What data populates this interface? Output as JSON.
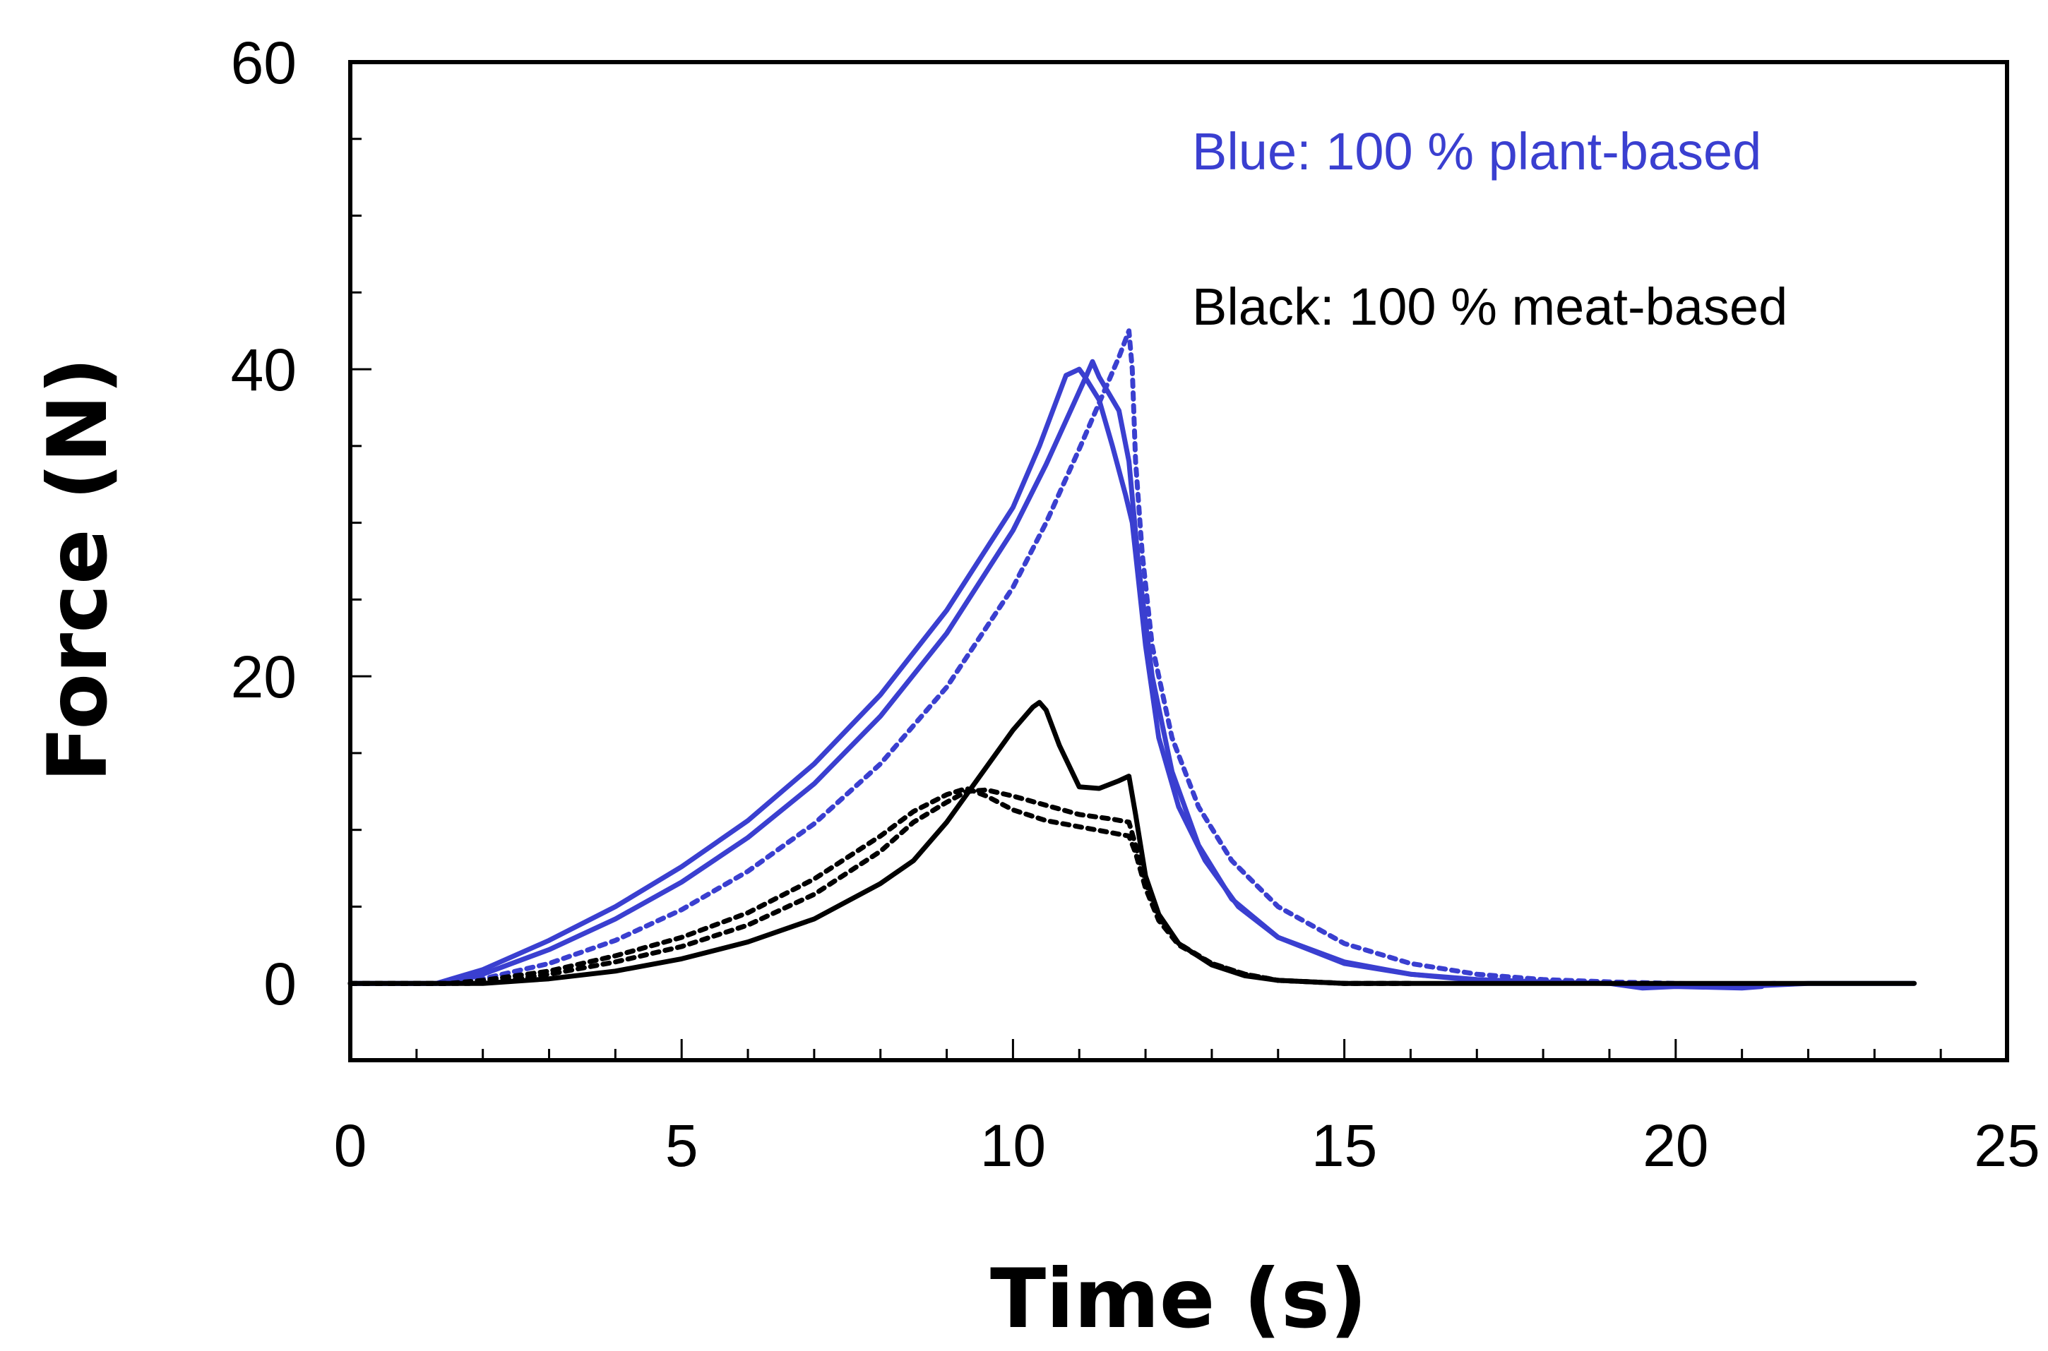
{
  "chart_data": {
    "type": "line",
    "xlabel": "Time (s)",
    "ylabel": "Force (N)",
    "xlim": [
      0,
      25
    ],
    "ylim": [
      -5,
      60
    ],
    "xticks": [
      0,
      5,
      10,
      15,
      20,
      25
    ],
    "yticks": [
      0,
      20,
      40,
      60
    ],
    "grid": false,
    "annotations": [
      {
        "text": "Blue: 100 % plant-based",
        "color": "#3a3fd0"
      },
      {
        "text": "Black: 100 % meat-based",
        "color": "#000000"
      }
    ],
    "series": [
      {
        "name": "plant-based run 1",
        "color": "#3a3fd0",
        "dash": "solid",
        "points": [
          [
            0,
            0
          ],
          [
            1.5,
            0
          ],
          [
            2,
            0.6
          ],
          [
            3,
            2.2
          ],
          [
            4,
            4.2
          ],
          [
            5,
            6.6
          ],
          [
            6,
            9.5
          ],
          [
            7,
            13.0
          ],
          [
            8,
            17.4
          ],
          [
            9,
            22.8
          ],
          [
            10,
            29.5
          ],
          [
            10.5,
            33.8
          ],
          [
            10.9,
            37.6
          ],
          [
            11.1,
            39.5
          ],
          [
            11.2,
            40.5
          ],
          [
            11.3,
            39.5
          ],
          [
            11.6,
            37.3
          ],
          [
            11.75,
            34.0
          ],
          [
            11.9,
            27.0
          ],
          [
            12.1,
            20.0
          ],
          [
            12.4,
            13.8
          ],
          [
            12.8,
            9.0
          ],
          [
            13.3,
            5.5
          ],
          [
            14,
            3.0
          ],
          [
            15,
            1.4
          ],
          [
            16,
            0.6
          ],
          [
            17,
            0.2
          ],
          [
            18,
            0.05
          ],
          [
            19,
            0
          ],
          [
            20,
            -0.1
          ],
          [
            21,
            -0.2
          ],
          [
            22,
            0
          ],
          [
            23.6,
            0
          ]
        ]
      },
      {
        "name": "plant-based run 2",
        "color": "#3a3fd0",
        "dash": "solid",
        "points": [
          [
            0,
            0
          ],
          [
            1.3,
            0
          ],
          [
            2,
            0.9
          ],
          [
            3,
            2.8
          ],
          [
            4,
            5.0
          ],
          [
            5,
            7.6
          ],
          [
            6,
            10.6
          ],
          [
            7,
            14.3
          ],
          [
            8,
            18.8
          ],
          [
            9,
            24.3
          ],
          [
            10,
            31.0
          ],
          [
            10.4,
            35.0
          ],
          [
            10.8,
            39.6
          ],
          [
            11.0,
            40.0
          ],
          [
            11.1,
            39.4
          ],
          [
            11.3,
            38.0
          ],
          [
            11.5,
            35.0
          ],
          [
            11.7,
            31.8
          ],
          [
            11.8,
            30.0
          ],
          [
            12.0,
            22.0
          ],
          [
            12.2,
            16.0
          ],
          [
            12.5,
            11.5
          ],
          [
            12.9,
            8.0
          ],
          [
            13.4,
            5.0
          ],
          [
            14,
            3.0
          ],
          [
            15,
            1.3
          ],
          [
            16,
            0.6
          ],
          [
            17,
            0.25
          ],
          [
            18,
            0.1
          ],
          [
            19,
            0
          ],
          [
            19.5,
            -0.3
          ],
          [
            20,
            -0.2
          ],
          [
            21,
            -0.3
          ],
          [
            21.3,
            -0.2
          ]
        ]
      },
      {
        "name": "plant-based run 3",
        "color": "#3a3fd0",
        "dash": "dotted",
        "points": [
          [
            0,
            0
          ],
          [
            1.5,
            0
          ],
          [
            2,
            0.3
          ],
          [
            3,
            1.3
          ],
          [
            4,
            2.8
          ],
          [
            5,
            4.8
          ],
          [
            6,
            7.3
          ],
          [
            7,
            10.4
          ],
          [
            8,
            14.3
          ],
          [
            9,
            19.3
          ],
          [
            10,
            25.8
          ],
          [
            10.5,
            30.0
          ],
          [
            11,
            34.8
          ],
          [
            11.4,
            38.8
          ],
          [
            11.6,
            40.8
          ],
          [
            11.75,
            42.5
          ],
          [
            11.8,
            40.0
          ],
          [
            11.85,
            34.0
          ],
          [
            11.95,
            28.0
          ],
          [
            12.1,
            22.0
          ],
          [
            12.4,
            16.0
          ],
          [
            12.8,
            11.5
          ],
          [
            13.3,
            8.0
          ],
          [
            14,
            5.0
          ],
          [
            15,
            2.6
          ],
          [
            16,
            1.3
          ],
          [
            17,
            0.6
          ],
          [
            18,
            0.25
          ],
          [
            19,
            0.1
          ],
          [
            20,
            0
          ],
          [
            21,
            -0.1
          ],
          [
            21.5,
            0
          ]
        ]
      },
      {
        "name": "meat-based run 1",
        "color": "#000000",
        "dash": "solid",
        "points": [
          [
            0,
            0
          ],
          [
            2,
            0
          ],
          [
            3,
            0.3
          ],
          [
            4,
            0.8
          ],
          [
            5,
            1.6
          ],
          [
            6,
            2.7
          ],
          [
            7,
            4.2
          ],
          [
            8,
            6.5
          ],
          [
            8.5,
            8.0
          ],
          [
            9,
            10.5
          ],
          [
            9.5,
            13.5
          ],
          [
            10,
            16.5
          ],
          [
            10.3,
            18.0
          ],
          [
            10.4,
            18.3
          ],
          [
            10.5,
            17.8
          ],
          [
            10.7,
            15.5
          ],
          [
            11,
            12.8
          ],
          [
            11.3,
            12.7
          ],
          [
            11.6,
            13.2
          ],
          [
            11.75,
            13.5
          ],
          [
            11.85,
            11.0
          ],
          [
            12,
            7.0
          ],
          [
            12.2,
            4.5
          ],
          [
            12.5,
            2.6
          ],
          [
            13,
            1.2
          ],
          [
            13.5,
            0.5
          ],
          [
            14,
            0.2
          ],
          [
            15,
            0
          ],
          [
            23.6,
            0
          ]
        ]
      },
      {
        "name": "meat-based run 2",
        "color": "#000000",
        "dash": "dotted",
        "points": [
          [
            0,
            0
          ],
          [
            1.8,
            0
          ],
          [
            2.5,
            0.3
          ],
          [
            3,
            0.6
          ],
          [
            4,
            1.4
          ],
          [
            5,
            2.4
          ],
          [
            6,
            3.8
          ],
          [
            7,
            5.8
          ],
          [
            8,
            8.6
          ],
          [
            8.5,
            10.5
          ],
          [
            9,
            11.8
          ],
          [
            9.3,
            12.5
          ],
          [
            9.6,
            12.6
          ],
          [
            10,
            12.2
          ],
          [
            10.5,
            11.6
          ],
          [
            11,
            11.0
          ],
          [
            11.5,
            10.7
          ],
          [
            11.75,
            10.5
          ],
          [
            11.85,
            9.0
          ],
          [
            12,
            6.5
          ],
          [
            12.2,
            4.3
          ],
          [
            12.5,
            2.6
          ],
          [
            13,
            1.3
          ],
          [
            13.5,
            0.6
          ],
          [
            14,
            0.2
          ],
          [
            15,
            0
          ],
          [
            16,
            0
          ]
        ]
      },
      {
        "name": "meat-based run 3",
        "color": "#000000",
        "dash": "dotted",
        "points": [
          [
            0,
            0
          ],
          [
            1.5,
            0
          ],
          [
            2,
            0.2
          ],
          [
            3,
            0.8
          ],
          [
            4,
            1.8
          ],
          [
            5,
            3.0
          ],
          [
            6,
            4.6
          ],
          [
            7,
            6.8
          ],
          [
            8,
            9.6
          ],
          [
            8.5,
            11.2
          ],
          [
            9,
            12.3
          ],
          [
            9.3,
            12.7
          ],
          [
            9.6,
            12.2
          ],
          [
            10,
            11.3
          ],
          [
            10.5,
            10.6
          ],
          [
            11,
            10.2
          ],
          [
            11.5,
            9.8
          ],
          [
            11.75,
            9.6
          ],
          [
            11.85,
            8.5
          ],
          [
            12,
            6.2
          ],
          [
            12.2,
            4.1
          ],
          [
            12.5,
            2.5
          ],
          [
            13,
            1.3
          ],
          [
            13.5,
            0.6
          ],
          [
            14,
            0.2
          ],
          [
            15,
            0
          ],
          [
            16,
            0
          ]
        ]
      }
    ]
  }
}
